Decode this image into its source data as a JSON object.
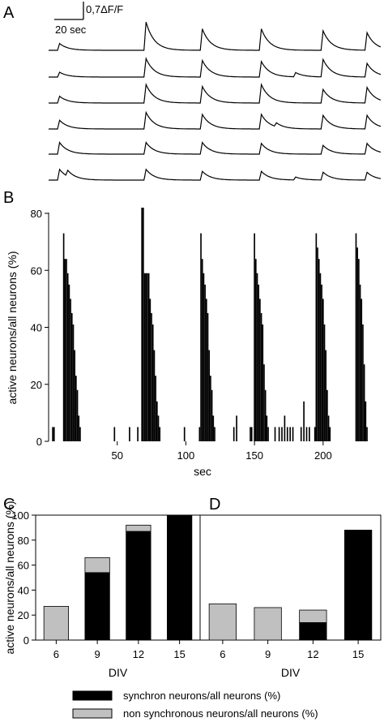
{
  "panels": {
    "a": "A",
    "b": "B",
    "c": "C",
    "d": "D"
  },
  "scalebar": {
    "y_label": "0,7ΔF/F",
    "x_label": "20 sec"
  },
  "chart_data": [
    {
      "id": "A",
      "type": "line",
      "title": "",
      "xlabel": "",
      "ylabel": "",
      "series": [
        {
          "peaks": [
            [
              8,
              0.35
            ],
            [
              71,
              1.45
            ],
            [
              112,
              1.1
            ],
            [
              155,
              1.1
            ],
            [
              200,
              1.0
            ],
            [
              232,
              0.9
            ]
          ]
        },
        {
          "peaks": [
            [
              8,
              0.25
            ],
            [
              71,
              0.95
            ],
            [
              112,
              0.85
            ],
            [
              155,
              0.8
            ],
            [
              180,
              0.22
            ],
            [
              200,
              0.9
            ],
            [
              232,
              0.7
            ]
          ]
        },
        {
          "peaks": [
            [
              8,
              0.35
            ],
            [
              71,
              0.95
            ],
            [
              112,
              0.85
            ],
            [
              155,
              0.95
            ],
            [
              200,
              0.7
            ],
            [
              232,
              0.8
            ]
          ]
        },
        {
          "peaks": [
            [
              8,
              0.45
            ],
            [
              71,
              0.85
            ],
            [
              112,
              0.75
            ],
            [
              155,
              0.75
            ],
            [
              166,
              0.2
            ],
            [
              200,
              0.7
            ],
            [
              232,
              0.7
            ]
          ]
        },
        {
          "peaks": [
            [
              8,
              0.6
            ],
            [
              71,
              0.6
            ],
            [
              112,
              0.6
            ],
            [
              155,
              0.55
            ],
            [
              200,
              0.45
            ],
            [
              232,
              0.55
            ]
          ]
        },
        {
          "peaks": [
            [
              8,
              0.55
            ],
            [
              14,
              0.3
            ],
            [
              71,
              0.55
            ],
            [
              112,
              0.45
            ],
            [
              155,
              0.45
            ],
            [
              180,
              0.15
            ],
            [
              200,
              0.4
            ],
            [
              232,
              0.4
            ]
          ]
        }
      ]
    },
    {
      "id": "B",
      "type": "bar",
      "title": "",
      "xlabel": "sec",
      "ylabel": "active neurons/all neurons (%)",
      "xlim": [
        0,
        242
      ],
      "ylim": [
        0,
        80
      ],
      "xticks": [
        50,
        100,
        150,
        200
      ],
      "yticks": [
        0,
        20,
        40,
        60,
        80
      ],
      "bars": [
        [
          3,
          5
        ],
        [
          4,
          5
        ],
        [
          11,
          73
        ],
        [
          12,
          64
        ],
        [
          13,
          64
        ],
        [
          14,
          59
        ],
        [
          15,
          55
        ],
        [
          16,
          50
        ],
        [
          17,
          45
        ],
        [
          18,
          41
        ],
        [
          19,
          32
        ],
        [
          20,
          23
        ],
        [
          21,
          18
        ],
        [
          22,
          9
        ],
        [
          23,
          5
        ],
        [
          48,
          5
        ],
        [
          59,
          5
        ],
        [
          65,
          5
        ],
        [
          68,
          82
        ],
        [
          69,
          82
        ],
        [
          70,
          59
        ],
        [
          71,
          59
        ],
        [
          72,
          59
        ],
        [
          73,
          59
        ],
        [
          74,
          50
        ],
        [
          75,
          45
        ],
        [
          76,
          41
        ],
        [
          77,
          32
        ],
        [
          78,
          23
        ],
        [
          79,
          14
        ],
        [
          80,
          9
        ],
        [
          81,
          5
        ],
        [
          99,
          5
        ],
        [
          110,
          5
        ],
        [
          111,
          73
        ],
        [
          112,
          64
        ],
        [
          113,
          59
        ],
        [
          114,
          55
        ],
        [
          115,
          50
        ],
        [
          116,
          45
        ],
        [
          117,
          32
        ],
        [
          118,
          23
        ],
        [
          119,
          18
        ],
        [
          120,
          9
        ],
        [
          121,
          5
        ],
        [
          135,
          5
        ],
        [
          137,
          9
        ],
        [
          147,
          5
        ],
        [
          148,
          5
        ],
        [
          150,
          73
        ],
        [
          151,
          64
        ],
        [
          152,
          59
        ],
        [
          153,
          55
        ],
        [
          154,
          50
        ],
        [
          155,
          45
        ],
        [
          156,
          41
        ],
        [
          157,
          27
        ],
        [
          158,
          18
        ],
        [
          159,
          9
        ],
        [
          160,
          5
        ],
        [
          165,
          5
        ],
        [
          168,
          5
        ],
        [
          170,
          5
        ],
        [
          172,
          9
        ],
        [
          174,
          5
        ],
        [
          176,
          5
        ],
        [
          178,
          5
        ],
        [
          184,
          5
        ],
        [
          186,
          14
        ],
        [
          188,
          5
        ],
        [
          190,
          5
        ],
        [
          194,
          5
        ],
        [
          195,
          73
        ],
        [
          196,
          68
        ],
        [
          197,
          64
        ],
        [
          198,
          59
        ],
        [
          199,
          55
        ],
        [
          200,
          50
        ],
        [
          201,
          41
        ],
        [
          202,
          32
        ],
        [
          203,
          18
        ],
        [
          204,
          9
        ],
        [
          205,
          5
        ],
        [
          224,
          73
        ],
        [
          225,
          68
        ],
        [
          226,
          64
        ],
        [
          227,
          55
        ],
        [
          228,
          50
        ],
        [
          229,
          41
        ],
        [
          230,
          27
        ],
        [
          231,
          14
        ],
        [
          232,
          5
        ]
      ]
    },
    {
      "id": "C",
      "type": "bar",
      "title": "",
      "xlabel": "DIV",
      "ylabel": "active neurons/all neurons (%)",
      "ylim": [
        0,
        100
      ],
      "yticks": [
        0,
        20,
        40,
        60,
        80,
        100
      ],
      "categories": [
        "6",
        "9",
        "12",
        "15"
      ],
      "series": [
        {
          "name": "synchron neurons/all neurons (%)",
          "values": [
            0,
            54,
            87,
            100
          ]
        },
        {
          "name": "non synchronous neurons/all neurons (%)",
          "values": [
            27,
            12,
            5,
            0
          ]
        }
      ]
    },
    {
      "id": "D",
      "type": "bar",
      "title": "",
      "xlabel": "DIV",
      "ylabel": "",
      "ylim": [
        0,
        100
      ],
      "categories": [
        "6",
        "9",
        "12",
        "15"
      ],
      "series": [
        {
          "name": "synchron neurons/all neurons (%)",
          "values": [
            0,
            0,
            14,
            88
          ]
        },
        {
          "name": "non synchronous neurons/all neurons (%)",
          "values": [
            29,
            26,
            10,
            0
          ]
        }
      ]
    }
  ],
  "legend": {
    "items": [
      {
        "label": "synchron neurons/all neurons (%)",
        "color": "#000000"
      },
      {
        "label": "non synchronous neurons/all neurons (%)",
        "color": "#c0c0c0"
      }
    ]
  },
  "colors": {
    "synchron": "#000000",
    "nonsync": "#c0c0c0",
    "trace": "#000000"
  }
}
